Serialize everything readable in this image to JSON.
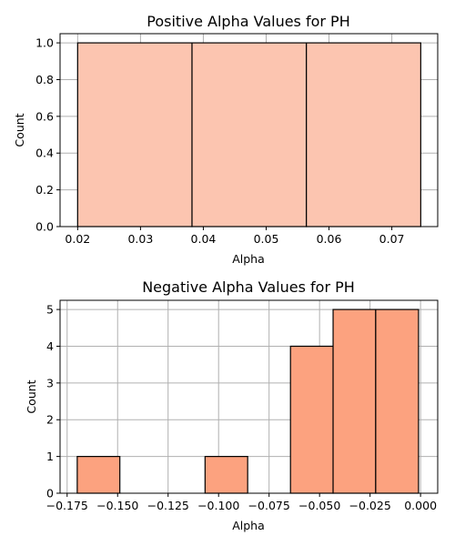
{
  "chart_data": [
    {
      "type": "bar",
      "title": "Positive Alpha Values for PH",
      "xlabel": "Alpha",
      "ylabel": "Count",
      "grid": true,
      "bar_color": "#fcc5b0",
      "edge_color": "#000000",
      "xlim": [
        0.0172,
        0.0773
      ],
      "ylim": [
        0,
        1.05
      ],
      "xticks": [
        0.02,
        0.03,
        0.04,
        0.05,
        0.06,
        0.07
      ],
      "xtick_labels": [
        "0.02",
        "0.03",
        "0.04",
        "0.05",
        "0.06",
        "0.07"
      ],
      "yticks": [
        0.0,
        0.2,
        0.4,
        0.6,
        0.8,
        1.0
      ],
      "ytick_labels": [
        "0.0",
        "0.2",
        "0.4",
        "0.6",
        "0.8",
        "1.0"
      ],
      "bins": [
        {
          "start": 0.02,
          "end": 0.0382,
          "count": 1
        },
        {
          "start": 0.0382,
          "end": 0.0564,
          "count": 1
        },
        {
          "start": 0.0564,
          "end": 0.0746,
          "count": 1
        }
      ]
    },
    {
      "type": "bar",
      "title": "Negative Alpha Values for PH",
      "xlabel": "Alpha",
      "ylabel": "Count",
      "grid": true,
      "bar_color": "#fca27f",
      "edge_color": "#000000",
      "xlim": [
        -0.1785,
        0.0085
      ],
      "ylim": [
        0,
        5.25
      ],
      "xticks": [
        -0.175,
        -0.15,
        -0.125,
        -0.1,
        -0.075,
        -0.05,
        -0.025,
        0.0
      ],
      "xtick_labels": [
        "−0.175",
        "−0.150",
        "−0.125",
        "−0.100",
        "−0.075",
        "−0.050",
        "−0.025",
        "0.000"
      ],
      "yticks": [
        0,
        1,
        2,
        3,
        4,
        5
      ],
      "ytick_labels": [
        "0",
        "1",
        "2",
        "3",
        "4",
        "5"
      ],
      "bins": [
        {
          "start": -0.17,
          "end": -0.1489,
          "count": 1
        },
        {
          "start": -0.1489,
          "end": -0.1278,
          "count": 0
        },
        {
          "start": -0.1278,
          "end": -0.1067,
          "count": 0
        },
        {
          "start": -0.1067,
          "end": -0.0856,
          "count": 1
        },
        {
          "start": -0.0856,
          "end": -0.0644,
          "count": 0
        },
        {
          "start": -0.0644,
          "end": -0.0433,
          "count": 4
        },
        {
          "start": -0.0433,
          "end": -0.0222,
          "count": 5
        },
        {
          "start": -0.0222,
          "end": -0.001,
          "count": 5
        }
      ]
    }
  ]
}
